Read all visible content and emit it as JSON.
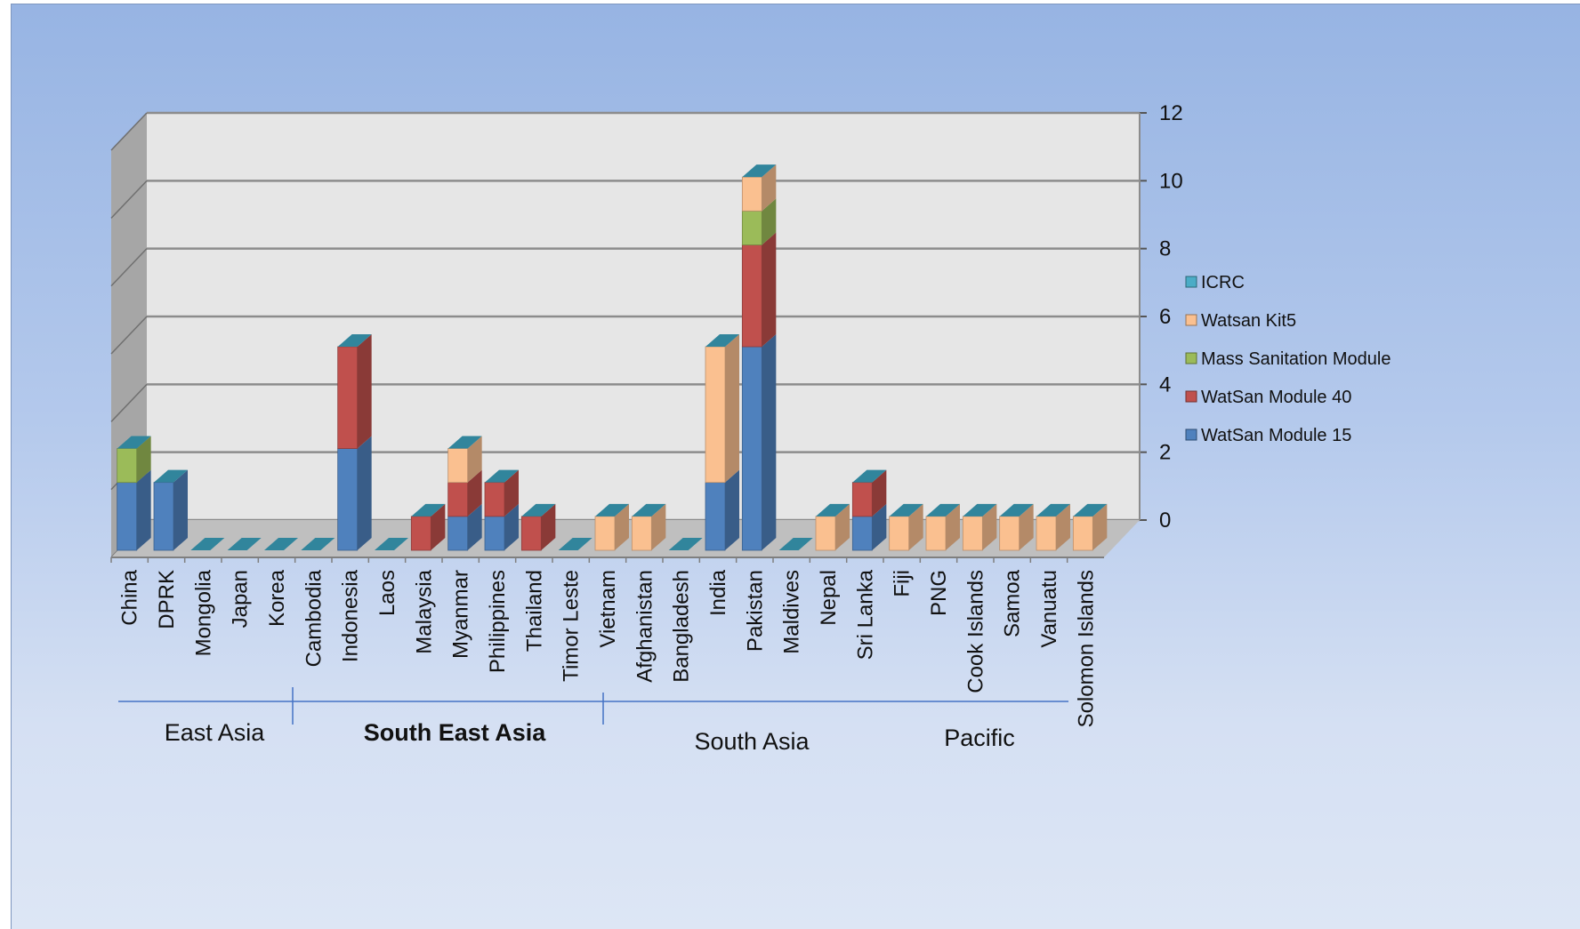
{
  "chart_data": {
    "type": "bar",
    "stacked": true,
    "three_d": true,
    "title": "",
    "xlabel": "",
    "ylabel": "",
    "ylim": [
      0,
      12
    ],
    "yticks": [
      0,
      2,
      4,
      6,
      8,
      10,
      12
    ],
    "grid": true,
    "legend_position": "right",
    "categories": [
      "China",
      "DPRK",
      "Mongolia",
      "Japan",
      "Korea",
      "Cambodia",
      "Indonesia",
      "Laos",
      "Malaysia",
      "Myanmar",
      "Philippines",
      "Thailand",
      "Timor Leste",
      "Vietnam",
      "Afghanistan",
      "Bangladesh",
      "India",
      "Pakistan",
      "Maldives",
      "Nepal",
      "Sri Lanka",
      "Fiji",
      "PNG",
      "Cook Islands",
      "Samoa",
      "Vanuatu",
      "Solomon Islands"
    ],
    "series": [
      {
        "name": "WatSan Module 15",
        "color": "#4f81bd",
        "values": [
          2,
          2,
          0,
          0,
          0,
          0,
          3,
          0,
          0,
          1,
          1,
          0,
          0,
          0,
          0,
          0,
          2,
          6,
          0,
          0,
          1,
          0,
          0,
          0,
          0,
          0,
          0
        ]
      },
      {
        "name": "WatSan Module 40",
        "color": "#c0504d",
        "values": [
          0,
          0,
          0,
          0,
          0,
          0,
          3,
          0,
          1,
          1,
          1,
          1,
          0,
          0,
          0,
          0,
          0,
          3,
          0,
          0,
          1,
          0,
          0,
          0,
          0,
          0,
          0
        ]
      },
      {
        "name": "Mass Sanitation Module",
        "color": "#9bbb59",
        "values": [
          1,
          0,
          0,
          0,
          0,
          0,
          0,
          0,
          0,
          0,
          0,
          0,
          0,
          0,
          0,
          0,
          0,
          1,
          0,
          0,
          0,
          0,
          0,
          0,
          0,
          0,
          0
        ]
      },
      {
        "name": "Watsan Kit5",
        "color": "#fac090",
        "values": [
          0,
          0,
          0,
          0,
          0,
          0,
          0,
          0,
          0,
          1,
          0,
          0,
          0,
          1,
          1,
          0,
          4,
          1,
          0,
          1,
          0,
          1,
          1,
          1,
          1,
          1,
          1
        ]
      },
      {
        "name": "ICRC",
        "color": "#4bacc6",
        "values": [
          0,
          0,
          0,
          0,
          0,
          0,
          0,
          0,
          0,
          0,
          0,
          0,
          0,
          0,
          0,
          0,
          0,
          0,
          0,
          0,
          0,
          0,
          0,
          0,
          0,
          0,
          0
        ]
      }
    ],
    "regions": [
      {
        "name": "East Asia",
        "color": "#111111",
        "bold": false
      },
      {
        "name": "South East Asia",
        "color": "#e31b23",
        "bold": true
      },
      {
        "name": "South Asia",
        "color": "#111111",
        "bold": false
      },
      {
        "name": "Pacific",
        "color": "#111111",
        "bold": false
      }
    ]
  },
  "colors": {
    "background_top": "#97b4e3",
    "background_bottom": "#dde6f5",
    "back_wall": "#e6e6e6",
    "side_wall": "#a6a6a6",
    "floor": "#bfbfbf",
    "gridline": "#8c8c8c",
    "separator": "#4472c4",
    "bar_top": "#31859c"
  }
}
